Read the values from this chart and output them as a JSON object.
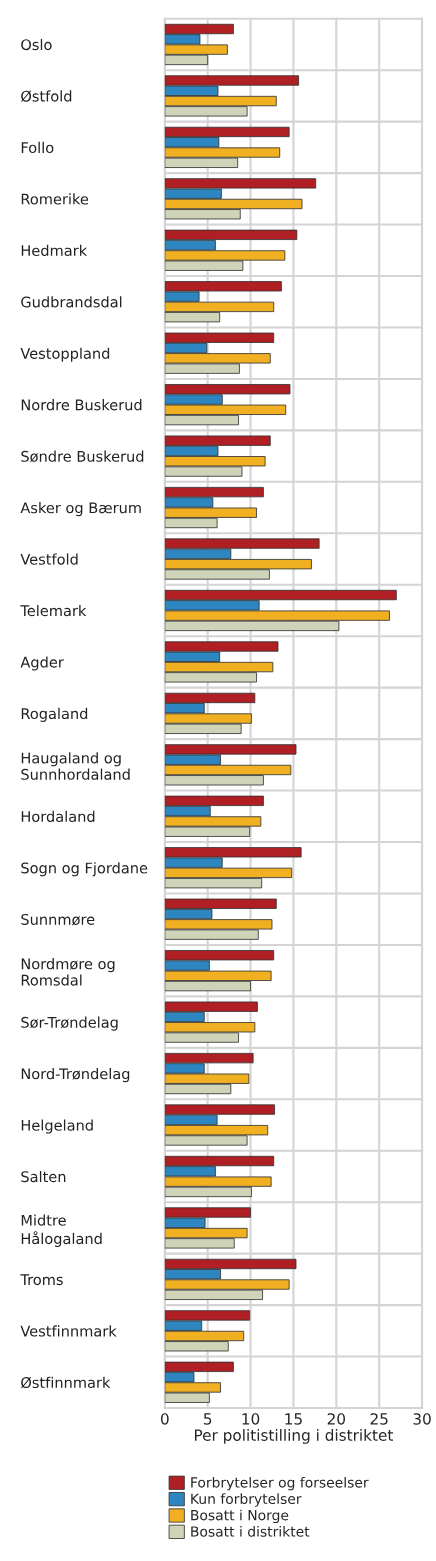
{
  "chart_data": {
    "type": "bar",
    "orientation": "horizontal",
    "xlabel": "Per politistilling i distriktet",
    "categories": [
      "Oslo",
      "Østfold",
      "Follo",
      "Romerike",
      "Hedmark",
      "Gudbrandsdal",
      "Vestoppland",
      "Nordre Buskerud",
      "Søndre Buskerud",
      "Asker og Bærum",
      "Vestfold",
      "Telemark",
      "Agder",
      "Rogaland",
      "Haugaland og\nSunnhordaland",
      "Hordaland",
      "Sogn og Fjordane",
      "Sunnmøre",
      "Nordmøre og\nRomsdal",
      "Sør-Trøndelag",
      "Nord-Trøndelag",
      "Helgeland",
      "Salten",
      "Midtre\nHålogaland",
      "Troms",
      "Vestfinnmark",
      "Østfinnmark"
    ],
    "series": [
      {
        "name": "Forbrytelser og forseelser",
        "color": "#b01f24",
        "values": [
          8.0,
          15.6,
          14.5,
          17.6,
          15.4,
          13.6,
          12.7,
          14.6,
          12.3,
          11.5,
          18.0,
          27.0,
          13.2,
          10.5,
          15.3,
          11.5,
          15.9,
          13.0,
          12.7,
          10.8,
          10.3,
          12.8,
          12.7,
          10.0,
          15.3,
          9.9,
          8.0
        ]
      },
      {
        "name": "Kun forbrytelser",
        "color": "#2e86c1",
        "values": [
          4.1,
          6.2,
          6.3,
          6.6,
          5.9,
          4.0,
          4.9,
          6.7,
          6.2,
          5.6,
          7.7,
          11.0,
          6.4,
          4.6,
          6.5,
          5.3,
          6.7,
          5.5,
          5.2,
          4.6,
          4.6,
          6.1,
          5.9,
          4.7,
          6.5,
          4.3,
          3.4
        ]
      },
      {
        "name": "Bosatt i Norge",
        "color": "#f0b022",
        "values": [
          7.3,
          13.0,
          13.4,
          16.0,
          14.0,
          12.7,
          12.3,
          14.1,
          11.7,
          10.7,
          17.1,
          26.2,
          12.6,
          10.1,
          14.7,
          11.2,
          14.8,
          12.5,
          12.4,
          10.5,
          9.8,
          12.0,
          12.4,
          9.6,
          14.5,
          9.2,
          6.5
        ]
      },
      {
        "name": "Bosatt i distriktet",
        "color": "#cfd4b9",
        "values": [
          5.0,
          9.6,
          8.5,
          8.8,
          9.1,
          6.4,
          8.7,
          8.6,
          9.0,
          6.1,
          12.2,
          20.3,
          10.7,
          8.9,
          11.5,
          9.9,
          11.3,
          10.9,
          10.0,
          8.6,
          7.7,
          9.6,
          10.1,
          8.1,
          11.4,
          7.4,
          5.2
        ]
      }
    ],
    "xlim": [
      0,
      30
    ],
    "xticks": [
      0,
      5,
      10,
      15,
      20,
      25,
      30
    ],
    "grid": true,
    "legend": "bottom"
  }
}
